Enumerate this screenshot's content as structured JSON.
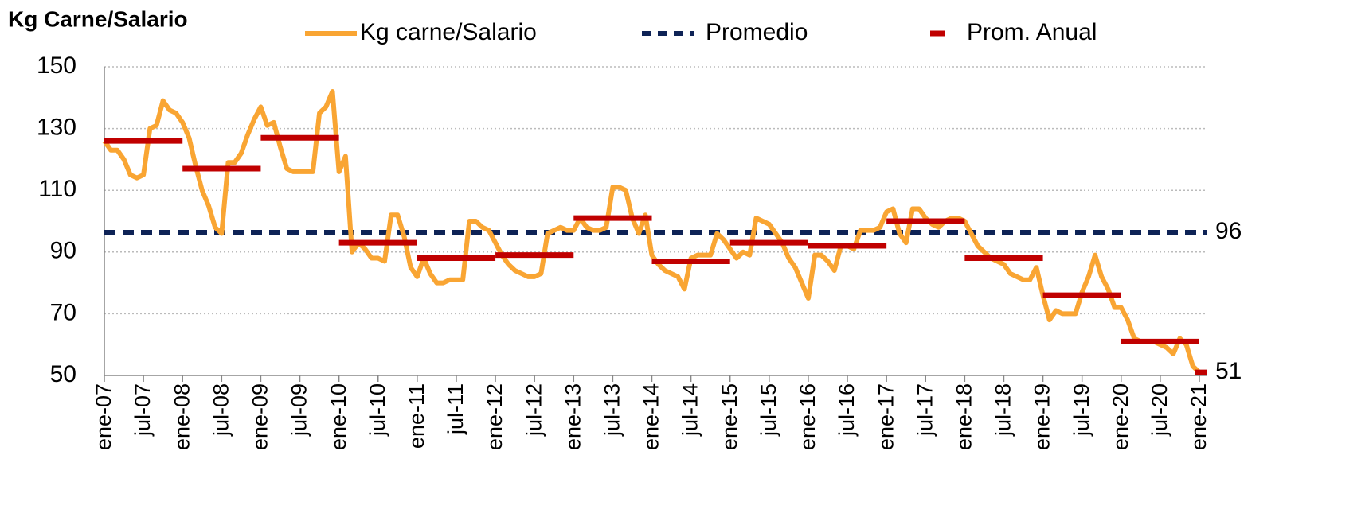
{
  "chart_data": {
    "type": "line",
    "title": "Kg Carne/Salario",
    "categories": [
      "ene-07",
      null,
      null,
      null,
      null,
      null,
      "jul-07",
      null,
      null,
      null,
      null,
      null,
      "ene-08",
      null,
      null,
      null,
      null,
      null,
      "jul-08",
      null,
      null,
      null,
      null,
      null,
      "ene-09",
      null,
      null,
      null,
      null,
      null,
      "jul-09",
      null,
      null,
      null,
      null,
      null,
      "ene-10",
      null,
      null,
      null,
      null,
      null,
      "jul-10",
      null,
      null,
      null,
      null,
      null,
      "ene-11",
      null,
      null,
      null,
      null,
      null,
      "jul-11",
      null,
      null,
      null,
      null,
      null,
      "ene-12",
      null,
      null,
      null,
      null,
      null,
      "jul-12",
      null,
      null,
      null,
      null,
      null,
      "ene-13",
      null,
      null,
      null,
      null,
      null,
      "jul-13",
      null,
      null,
      null,
      null,
      null,
      "ene-14",
      null,
      null,
      null,
      null,
      null,
      "jul-14",
      null,
      null,
      null,
      null,
      null,
      "ene-15",
      null,
      null,
      null,
      null,
      null,
      "jul-15",
      null,
      null,
      null,
      null,
      null,
      "ene-16",
      null,
      null,
      null,
      null,
      null,
      "jul-16",
      null,
      null,
      null,
      null,
      null,
      "ene-17",
      null,
      null,
      null,
      null,
      null,
      "jul-17",
      null,
      null,
      null,
      null,
      null,
      "ene-18",
      null,
      null,
      null,
      null,
      null,
      "jul-18",
      null,
      null,
      null,
      null,
      null,
      "ene-19",
      null,
      null,
      null,
      null,
      null,
      "jul-19",
      null,
      null,
      null,
      null,
      null,
      "ene-20",
      null,
      null,
      null,
      null,
      null,
      "jul-20",
      null,
      null,
      null,
      null,
      null,
      "ene-21"
    ],
    "series": [
      {
        "name": "Kg carne/Salario",
        "color": "#f9a533",
        "values": [
          126,
          123,
          123,
          120,
          115,
          114,
          115,
          130,
          131,
          139,
          136,
          135,
          132,
          127,
          118,
          110,
          105,
          98,
          96,
          119,
          119,
          122,
          128,
          133,
          137,
          131,
          132,
          124,
          117,
          116,
          116,
          116,
          116,
          135,
          137,
          142,
          116,
          121,
          90,
          93,
          91,
          88,
          88,
          87,
          102,
          102,
          95,
          85,
          82,
          88,
          83,
          80,
          80,
          81,
          81,
          81,
          100,
          100,
          98,
          97,
          93,
          89,
          86,
          84,
          83,
          82,
          82,
          83,
          96,
          97,
          98,
          97,
          97,
          101,
          98,
          97,
          97,
          98,
          111,
          111,
          110,
          101,
          96,
          102,
          89,
          86,
          84,
          83,
          82,
          78,
          88,
          89,
          89,
          89,
          96,
          94,
          91,
          88,
          90,
          89,
          101,
          100,
          99,
          96,
          93,
          88,
          85,
          80,
          75,
          89,
          89,
          87,
          84,
          92,
          92,
          91,
          97,
          97,
          97,
          98,
          103,
          104,
          96,
          93,
          104,
          104,
          101,
          99,
          98,
          100,
          101,
          101,
          100,
          96,
          92,
          90,
          88,
          87,
          86,
          83,
          82,
          81,
          81,
          85,
          76,
          68,
          71,
          70,
          70,
          70,
          77,
          82,
          89,
          82,
          78,
          72,
          72,
          68,
          62,
          61,
          61,
          61,
          60,
          59,
          57,
          62,
          60,
          53,
          51
        ]
      }
    ],
    "promedio": {
      "name": "Promedio",
      "color": "#0e2356",
      "value": 96.4,
      "value_label": "96"
    },
    "annual": {
      "name": "Prom. Anual",
      "color": "#c00000",
      "values": [
        126,
        117,
        127,
        93,
        88,
        89,
        101,
        87,
        93,
        92,
        100,
        88,
        76,
        61,
        51
      ]
    },
    "ylim": [
      50,
      150
    ],
    "yticks": [
      50,
      70,
      90,
      110,
      130,
      150
    ],
    "grid": true
  }
}
